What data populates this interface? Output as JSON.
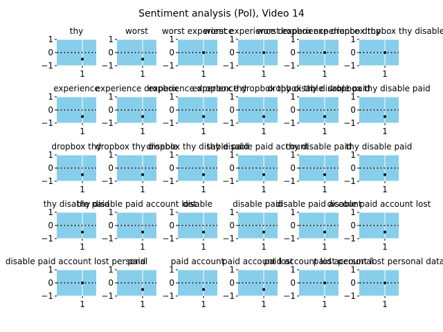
{
  "chart_data": {
    "type": "scatter",
    "title": "Sentiment analysis (Pol), Video 14",
    "layout": {
      "rows": 5,
      "cols": 6
    },
    "ylim": [
      -1,
      1
    ],
    "yticks": [
      "1",
      "0",
      "−1"
    ],
    "xtick": "1",
    "reference_line_y": 0,
    "grid": true,
    "background_color": "#87ceeb",
    "point_color": "#000000",
    "panels": [
      {
        "title": "thy",
        "x": 1,
        "y": -0.5
      },
      {
        "title": "worst",
        "x": 1,
        "y": -0.5
      },
      {
        "title": "worst experience",
        "x": 1,
        "y": 0
      },
      {
        "title": "worst experience dropbox",
        "x": 1,
        "y": 0
      },
      {
        "title": "worst experience dropbox thy",
        "x": 1,
        "y": 0
      },
      {
        "title": "experience dropbox thy disable",
        "x": 1,
        "y": 0
      },
      {
        "title": "experience",
        "x": 1,
        "y": -0.5
      },
      {
        "title": "experience dropbox",
        "x": 1,
        "y": -0.5
      },
      {
        "title": "experience dropbox thy",
        "x": 1,
        "y": -0.5
      },
      {
        "title": "experience dropbox thy disable",
        "x": 1,
        "y": -0.5
      },
      {
        "title": "dropbox thy disable paid",
        "x": 1,
        "y": -0.5
      },
      {
        "title": "dropbox thy disable paid",
        "x": 1,
        "y": -0.5
      },
      {
        "title": "dropbox thy",
        "x": 1,
        "y": -0.5
      },
      {
        "title": "dropbox thy disable",
        "x": 1,
        "y": -0.5
      },
      {
        "title": "dropbox thy disable paid",
        "x": 1,
        "y": -0.5
      },
      {
        "title": "thy disable paid account",
        "x": 1,
        "y": -0.5
      },
      {
        "title": "thy disable paid",
        "x": 1,
        "y": -0.5
      },
      {
        "title": "thy disable paid",
        "x": 1,
        "y": -0.5
      },
      {
        "title": "thy disable paid",
        "x": 1,
        "y": -0.5
      },
      {
        "title": "thy disable paid account lost",
        "x": 1,
        "y": -0.5
      },
      {
        "title": "disable",
        "x": 1,
        "y": -0.5
      },
      {
        "title": "disable paid",
        "x": 1,
        "y": -0.5
      },
      {
        "title": "disable paid account",
        "x": 1,
        "y": -0.5
      },
      {
        "title": "disable paid account lost",
        "x": 1,
        "y": -0.5
      },
      {
        "title": "disable paid account lost personal",
        "x": 1,
        "y": 0
      },
      {
        "title": "paid",
        "x": 1,
        "y": -0.5
      },
      {
        "title": "paid account",
        "x": 1,
        "y": -0.5
      },
      {
        "title": "paid account lost",
        "x": 1,
        "y": -0.5
      },
      {
        "title": "paid account lost personal",
        "x": 1,
        "y": 0
      },
      {
        "title": "paid account lost personal data",
        "x": 1,
        "y": 0
      }
    ]
  }
}
